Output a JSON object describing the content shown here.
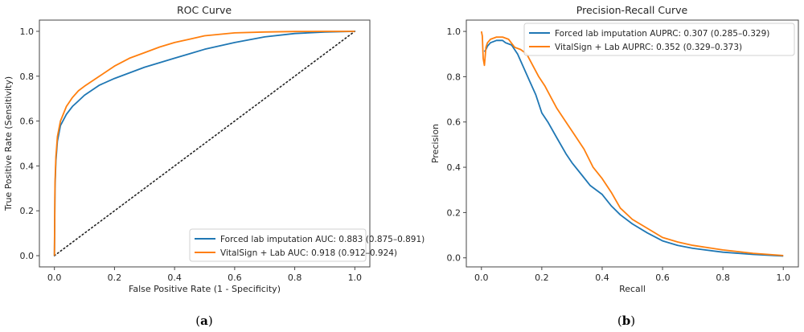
{
  "chart_data": [
    {
      "type": "line",
      "panel_label": "a",
      "title": "ROC Curve",
      "xlabel": "False Positive Rate (1 - Specificity)",
      "ylabel": "True Positive Rate (Sensitivity)",
      "xlim": [
        -0.05,
        1.05
      ],
      "ylim": [
        -0.05,
        1.05
      ],
      "xticks": [
        "0.0",
        "0.2",
        "0.4",
        "0.6",
        "0.8",
        "1.0"
      ],
      "yticks": [
        "0.0",
        "0.2",
        "0.4",
        "0.6",
        "0.8",
        "1.0"
      ],
      "tick_values": [
        0,
        0.2,
        0.4,
        0.6,
        0.8,
        1.0
      ],
      "grid": false,
      "legend_position": "lower-right",
      "reference_line": {
        "name": "chance",
        "x": [
          0,
          1
        ],
        "y": [
          0,
          1
        ],
        "style": "dotted",
        "color": "#222222"
      },
      "series": [
        {
          "name": "Forced lab imputation AUC: 0.883 (0.875–0.891)",
          "color": "#1f77b4",
          "x": [
            0,
            0.002,
            0.005,
            0.01,
            0.02,
            0.04,
            0.06,
            0.08,
            0.1,
            0.15,
            0.2,
            0.25,
            0.3,
            0.35,
            0.4,
            0.45,
            0.5,
            0.6,
            0.7,
            0.8,
            0.9,
            1.0
          ],
          "y": [
            0,
            0.3,
            0.42,
            0.51,
            0.58,
            0.63,
            0.665,
            0.69,
            0.715,
            0.76,
            0.79,
            0.815,
            0.84,
            0.86,
            0.88,
            0.9,
            0.92,
            0.95,
            0.975,
            0.99,
            0.997,
            1.0
          ]
        },
        {
          "name": "VitalSign + Lab AUC: 0.918 (0.912–0.924)",
          "color": "#ff7f0e",
          "x": [
            0,
            0.002,
            0.005,
            0.01,
            0.02,
            0.04,
            0.06,
            0.08,
            0.1,
            0.15,
            0.2,
            0.25,
            0.3,
            0.35,
            0.4,
            0.45,
            0.5,
            0.6,
            0.7,
            0.8,
            0.9,
            1.0
          ],
          "y": [
            0,
            0.32,
            0.44,
            0.53,
            0.6,
            0.665,
            0.705,
            0.735,
            0.755,
            0.8,
            0.845,
            0.88,
            0.905,
            0.93,
            0.95,
            0.965,
            0.98,
            0.993,
            0.997,
            0.999,
            1.0,
            1.0
          ]
        }
      ]
    },
    {
      "type": "line",
      "panel_label": "b",
      "title": "Precision-Recall Curve",
      "xlabel": "Recall",
      "ylabel": "Precision",
      "xlim": [
        -0.05,
        1.05
      ],
      "ylim": [
        -0.04,
        1.05
      ],
      "xticks": [
        "0.0",
        "0.2",
        "0.4",
        "0.6",
        "0.8",
        "1.0"
      ],
      "yticks": [
        "0.0",
        "0.2",
        "0.4",
        "0.6",
        "0.8",
        "1.0"
      ],
      "tick_values": [
        0,
        0.2,
        0.4,
        0.6,
        0.8,
        1.0
      ],
      "grid": false,
      "legend_position": "upper-right",
      "series": [
        {
          "name": "Forced lab imputation AUPRC: 0.307 (0.285–0.329)",
          "color": "#1f77b4",
          "x": [
            0.01,
            0.015,
            0.02,
            0.03,
            0.05,
            0.07,
            0.08,
            0.1,
            0.12,
            0.14,
            0.16,
            0.18,
            0.2,
            0.22,
            0.25,
            0.28,
            0.3,
            0.33,
            0.36,
            0.4,
            0.43,
            0.46,
            0.5,
            0.55,
            0.6,
            0.65,
            0.7,
            0.8,
            0.9,
            1.0
          ],
          "y": [
            0.91,
            0.92,
            0.935,
            0.95,
            0.96,
            0.96,
            0.95,
            0.94,
            0.9,
            0.84,
            0.78,
            0.72,
            0.64,
            0.6,
            0.53,
            0.46,
            0.42,
            0.37,
            0.32,
            0.28,
            0.23,
            0.19,
            0.15,
            0.11,
            0.075,
            0.055,
            0.042,
            0.025,
            0.015,
            0.008
          ]
        },
        {
          "name": "VitalSign + Lab AUPRC: 0.352 (0.329–0.373)",
          "color": "#ff7f0e",
          "x": [
            0.0,
            0.003,
            0.006,
            0.01,
            0.015,
            0.02,
            0.03,
            0.05,
            0.07,
            0.09,
            0.11,
            0.13,
            0.15,
            0.17,
            0.19,
            0.21,
            0.23,
            0.25,
            0.28,
            0.31,
            0.34,
            0.37,
            0.4,
            0.43,
            0.46,
            0.5,
            0.55,
            0.6,
            0.65,
            0.7,
            0.8,
            0.9,
            1.0
          ],
          "y": [
            1.0,
            0.98,
            0.88,
            0.85,
            0.93,
            0.95,
            0.965,
            0.975,
            0.975,
            0.965,
            0.93,
            0.92,
            0.9,
            0.85,
            0.8,
            0.76,
            0.71,
            0.66,
            0.6,
            0.54,
            0.48,
            0.4,
            0.35,
            0.29,
            0.22,
            0.17,
            0.13,
            0.09,
            0.07,
            0.055,
            0.035,
            0.02,
            0.01
          ]
        }
      ]
    }
  ]
}
